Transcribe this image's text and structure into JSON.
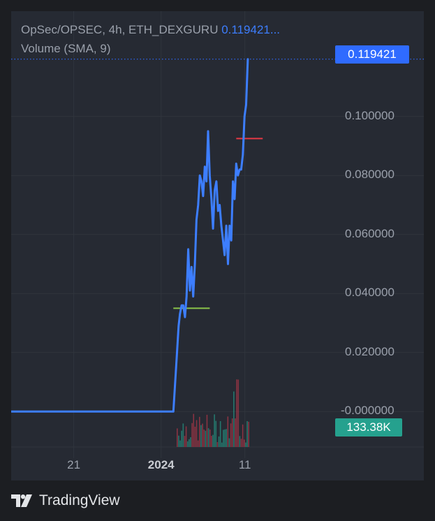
{
  "header": {
    "line1": "OpSec/OPSEC, 4h, ETH_DEXGURU",
    "price": "0.119421...",
    "line2": "Volume (SMA, 9)"
  },
  "last_price_label": "0.119421",
  "volume_label": "133.38K",
  "brand": {
    "name": "TradingView",
    "icon": "tradingview-logo-icon"
  },
  "colors": {
    "background": "#262a33",
    "line": "#3d7eff",
    "last_price": "#2f6bff",
    "volume_up": "#25a18e",
    "volume_down": "#c0394b",
    "marker_green": "#8bc34a",
    "marker_red": "#e53945"
  },
  "chart_data": {
    "type": "line",
    "y_ticks": [
      "0.100000",
      "0.080000",
      "0.060000",
      "0.040000",
      "0.020000",
      "-0.000000"
    ],
    "y_tick_values": [
      0.1,
      0.08,
      0.06,
      0.04,
      0.02,
      0.0
    ],
    "ylim": [
      -0.012,
      0.121
    ],
    "x_ticks": [
      {
        "label": "21",
        "t": 0.189,
        "bold": false
      },
      {
        "label": "2024",
        "t": 0.453,
        "bold": true
      },
      {
        "label": "11",
        "t": 0.706,
        "bold": false
      }
    ],
    "last_price": 0.119421,
    "series": [
      {
        "values": [
          [
            0.0,
            0.0
          ],
          [
            0.49,
            0.0
          ],
          [
            0.5,
            0.018
          ],
          [
            0.506,
            0.029
          ],
          [
            0.51,
            0.033
          ],
          [
            0.515,
            0.036
          ],
          [
            0.52,
            0.036
          ],
          [
            0.525,
            0.032
          ],
          [
            0.53,
            0.039
          ],
          [
            0.535,
            0.055
          ],
          [
            0.54,
            0.041
          ],
          [
            0.545,
            0.049
          ],
          [
            0.55,
            0.039
          ],
          [
            0.555,
            0.05
          ],
          [
            0.56,
            0.065
          ],
          [
            0.565,
            0.07
          ],
          [
            0.57,
            0.08
          ],
          [
            0.575,
            0.078
          ],
          [
            0.58,
            0.073
          ],
          [
            0.585,
            0.083
          ],
          [
            0.59,
            0.078
          ],
          [
            0.595,
            0.095
          ],
          [
            0.6,
            0.08
          ],
          [
            0.605,
            0.072
          ],
          [
            0.61,
            0.062
          ],
          [
            0.615,
            0.075
          ],
          [
            0.62,
            0.078
          ],
          [
            0.625,
            0.068
          ],
          [
            0.63,
            0.07
          ],
          [
            0.635,
            0.063
          ],
          [
            0.64,
            0.058
          ],
          [
            0.645,
            0.053
          ],
          [
            0.65,
            0.063
          ],
          [
            0.655,
            0.05
          ],
          [
            0.66,
            0.063
          ],
          [
            0.665,
            0.058
          ],
          [
            0.67,
            0.078
          ],
          [
            0.675,
            0.072
          ],
          [
            0.68,
            0.084
          ],
          [
            0.685,
            0.08
          ],
          [
            0.69,
            0.082
          ],
          [
            0.695,
            0.082
          ],
          [
            0.7,
            0.087
          ],
          [
            0.705,
            0.1
          ],
          [
            0.71,
            0.104
          ],
          [
            0.715,
            0.119421
          ]
        ]
      }
    ],
    "markers": [
      {
        "t0": 0.49,
        "t1": 0.6,
        "value": 0.035,
        "color": "green"
      },
      {
        "t0": 0.68,
        "t1": 0.76,
        "value": 0.0925,
        "color": "red"
      }
    ],
    "volume_bars_shown": true
  }
}
